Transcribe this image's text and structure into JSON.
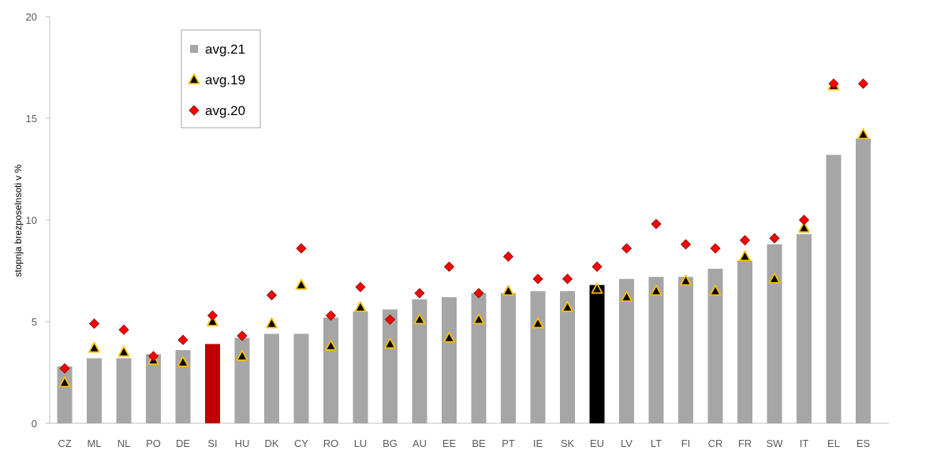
{
  "chart_data": {
    "type": "bar",
    "title": "",
    "xlabel": "",
    "ylabel": "stopnja brezposelnsoti v %",
    "ylim": [
      0,
      20
    ],
    "yticks": [
      0,
      5,
      10,
      15,
      20
    ],
    "grid": false,
    "legend_position": "top-left",
    "categories": [
      "CZ",
      "ML",
      "NL",
      "PO",
      "DE",
      "SI",
      "HU",
      "DK",
      "CY",
      "RO",
      "LU",
      "BG",
      "AU",
      "EE",
      "BE",
      "PT",
      "IE",
      "SK",
      "EU",
      "LV",
      "LT",
      "FI",
      "CR",
      "FR",
      "SW",
      "IT",
      "EL",
      "ES"
    ],
    "highlight": {
      "SI": "#c00000",
      "EU": "#000000"
    },
    "bar_color": "#a6a6a6",
    "series": [
      {
        "name": "avg.21",
        "marker": "bar",
        "color": "#a6a6a6",
        "values": [
          2.8,
          3.2,
          3.2,
          3.4,
          3.6,
          3.9,
          4.2,
          4.4,
          4.4,
          5.2,
          5.5,
          5.6,
          6.1,
          6.2,
          6.4,
          6.4,
          6.5,
          6.5,
          6.8,
          7.1,
          7.2,
          7.2,
          7.6,
          8.0,
          8.8,
          9.3,
          13.2,
          14.0
        ]
      },
      {
        "name": "avg.19",
        "marker": "triangle",
        "color": "#ffc000",
        "values": [
          2.0,
          3.7,
          3.5,
          3.1,
          3.0,
          5.0,
          3.3,
          4.9,
          6.8,
          3.8,
          5.7,
          3.9,
          5.1,
          4.2,
          5.1,
          6.5,
          4.9,
          5.7,
          6.6,
          6.2,
          6.5,
          7.0,
          6.5,
          8.2,
          7.1,
          9.6,
          16.6,
          14.2
        ]
      },
      {
        "name": "avg.20",
        "marker": "diamond",
        "color": "#ff0000",
        "values": [
          2.7,
          4.9,
          4.6,
          3.3,
          4.1,
          5.3,
          4.3,
          6.3,
          8.6,
          5.3,
          6.7,
          5.1,
          6.4,
          7.7,
          6.4,
          8.2,
          7.1,
          7.1,
          7.7,
          8.6,
          9.8,
          8.8,
          8.6,
          9.0,
          9.1,
          10.0,
          16.7,
          16.7
        ]
      }
    ]
  }
}
